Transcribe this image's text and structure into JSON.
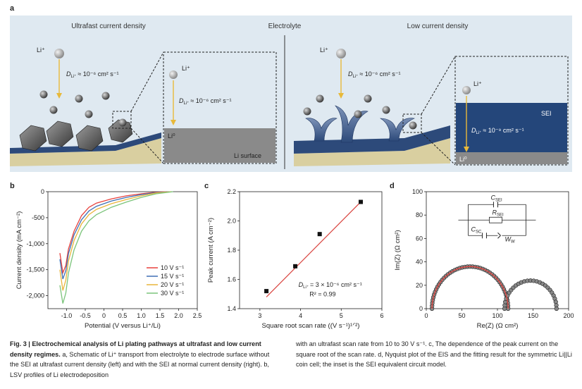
{
  "figure": {
    "panel_a": {
      "label": "a",
      "left_title": "Ultrafast current density",
      "center_title": "Electrolyte",
      "right_title": "Low current density",
      "li_plus": "Li⁺",
      "d_left": "D",
      "d_sub": "Li⁺",
      "d_fast": "≈ 10⁻⁶ cm² s⁻¹",
      "d_sei": "≈ 10⁻⁹ cm² s⁻¹",
      "li0": "Li⁰",
      "li_surface": "Li surface",
      "sei": "SEI"
    },
    "caption": {
      "fig_label": "Fig. 3 |",
      "bold_title": "Electrochemical analysis of Li plating pathways at ultrafast and low current density regimes.",
      "col1_rest": "a, Schematic of Li⁺ transport from electrolyte to electrode surface without the SEI at ultrafast current density (left) and with the SEI at normal current density (right). b, LSV profiles of Li electrodeposition",
      "col2": "with an ultrafast scan rate from 10 to 30 V s⁻¹. c, The dependence of the peak current on the square root of the scan rate. d, Nyquist plot of the EIS and the fitting result for the symmetric Li||Li coin cell; the inset is the SEI equivalent circuit model."
    }
  },
  "chart_data": [
    {
      "panel": "b",
      "type": "line",
      "xlabel": "Potential (V versus Li⁺/Li)",
      "ylabel": "Current density (mA cm⁻²)",
      "xlim": [
        -1.5,
        2.5
      ],
      "ylim": [
        -2250,
        0
      ],
      "xticks": [
        "-1.0",
        "-0.5",
        "0",
        "0.5",
        "1.0",
        "1.5",
        "2.0",
        "2.5"
      ],
      "yticks": [
        "0",
        "-500",
        "-1,000",
        "-1,500",
        "-2,000"
      ],
      "series": [
        {
          "name": "10 V s⁻¹",
          "color": "#e8413c",
          "x": [
            -1.18,
            -1.1,
            -1.02,
            -0.95,
            -0.8,
            -0.6,
            -0.4,
            -0.2,
            0.2,
            0.6,
            1.0,
            1.4,
            1.7
          ],
          "y": [
            -1180,
            -1560,
            -1420,
            -1100,
            -760,
            -460,
            -300,
            -220,
            -140,
            -80,
            -40,
            -10,
            0
          ]
        },
        {
          "name": "15 V s⁻¹",
          "color": "#3f6fb5",
          "x": [
            -1.18,
            -1.1,
            -1.02,
            -0.95,
            -0.8,
            -0.6,
            -0.4,
            -0.2,
            0.2,
            0.6,
            1.0,
            1.4,
            1.75
          ],
          "y": [
            -1300,
            -1680,
            -1520,
            -1190,
            -830,
            -540,
            -370,
            -280,
            -180,
            -110,
            -55,
            -15,
            0
          ]
        },
        {
          "name": "20 V s⁻¹",
          "color": "#e9b53a",
          "x": [
            -1.18,
            -1.1,
            -1.02,
            -0.95,
            -0.8,
            -0.6,
            -0.4,
            -0.2,
            0.2,
            0.6,
            1.0,
            1.4,
            1.8
          ],
          "y": [
            -1500,
            -1900,
            -1700,
            -1330,
            -940,
            -620,
            -440,
            -340,
            -230,
            -150,
            -80,
            -25,
            0
          ]
        },
        {
          "name": "30 V s⁻¹",
          "color": "#7bc47a",
          "x": [
            -1.18,
            -1.1,
            -1.02,
            -0.95,
            -0.8,
            -0.6,
            -0.4,
            -0.2,
            0.2,
            0.6,
            1.0,
            1.4,
            1.85
          ],
          "y": [
            -1800,
            -2150,
            -1950,
            -1560,
            -1120,
            -760,
            -560,
            -440,
            -300,
            -200,
            -110,
            -40,
            0
          ]
        }
      ]
    },
    {
      "panel": "c",
      "type": "scatter",
      "xlabel": "Square root scan rate ((V s⁻¹)¹ᐟ²)",
      "ylabel": "Peak current (A cm⁻²)",
      "xlim": [
        2.5,
        6
      ],
      "ylim": [
        1.4,
        2.2
      ],
      "xticks": [
        "3",
        "4",
        "5",
        "6"
      ],
      "yticks": [
        "1.4",
        "1.6",
        "1.8",
        "2.0",
        "2.2"
      ],
      "points": [
        {
          "x": 3.16,
          "y": 1.52
        },
        {
          "x": 3.87,
          "y": 1.69
        },
        {
          "x": 4.47,
          "y": 1.91
        },
        {
          "x": 5.48,
          "y": 2.13
        }
      ],
      "fit": {
        "x": [
          3.16,
          5.48
        ],
        "y": [
          1.48,
          2.13
        ],
        "color": "#d9443f"
      },
      "annotation_d": "D",
      "annotation_d_sub": "Li⁺",
      "annotation_value": "= 3 × 10⁻⁶ cm² s⁻¹",
      "annotation_r2": "R² = 0.99"
    },
    {
      "panel": "d",
      "type": "scatter",
      "xlabel": "Re(Z) (Ω cm²)",
      "ylabel": "Im(Z) (Ω cm²)",
      "xlim": [
        0,
        200
      ],
      "ylim": [
        0,
        100
      ],
      "xticks": [
        "0",
        "50",
        "100",
        "150",
        "200"
      ],
      "yticks": [
        "0",
        "20",
        "40",
        "60",
        "80",
        "100"
      ],
      "semicircle1": {
        "start": 8,
        "end": 115,
        "height": 36
      },
      "semicircle2": {
        "start": 110,
        "end": 183,
        "height": 24
      },
      "fit_color": "#d9443f",
      "circuit_labels": {
        "c_sei": "C",
        "c_sei_sub": "SEI",
        "r_sei": "R",
        "r_sei_sub": "SEI",
        "c_sc": "C",
        "c_sc_sub": "SC",
        "w": "W",
        "w_sub": "W"
      }
    }
  ]
}
